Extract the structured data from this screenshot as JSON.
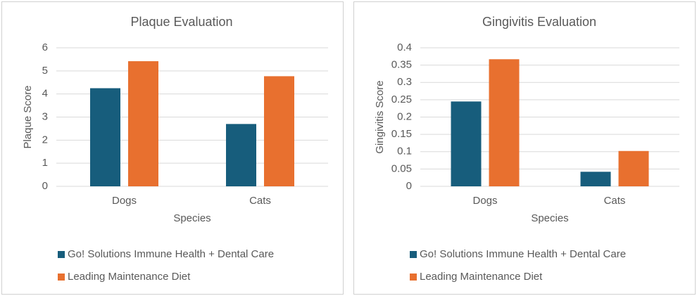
{
  "chart_data": [
    {
      "type": "bar",
      "title": "Plaque Evaluation",
      "x_label": "Species",
      "y_label": "Plaque Score",
      "categories": [
        "Dogs",
        "Cats"
      ],
      "series": [
        {
          "name": "Go! Solutions Immune Health + Dental Care",
          "color": "#175d7c",
          "values": [
            4.25,
            2.7
          ]
        },
        {
          "name": "Leading Maintenance Diet",
          "color": "#e8702f",
          "values": [
            5.42,
            4.77
          ]
        }
      ],
      "ylim": [
        0,
        6
      ],
      "yticks": [
        0,
        1,
        2,
        3,
        4,
        5,
        6
      ],
      "grid": true,
      "legend": "bottom"
    },
    {
      "type": "bar",
      "title": "Gingivitis Evaluation",
      "x_label": "Species",
      "y_label": "Gingivitis Score",
      "categories": [
        "Dogs",
        "Cats"
      ],
      "series": [
        {
          "name": "Go! Solutions Immune Health + Dental Care",
          "color": "#175d7c",
          "values": [
            0.245,
            0.042
          ]
        },
        {
          "name": "Leading Maintenance Diet",
          "color": "#e8702f",
          "values": [
            0.367,
            0.102
          ]
        }
      ],
      "ylim": [
        0,
        0.4
      ],
      "yticks": [
        0,
        0.05,
        0.1,
        0.15,
        0.2,
        0.25,
        0.3,
        0.35,
        0.4
      ],
      "grid": true,
      "legend": "bottom"
    }
  ]
}
